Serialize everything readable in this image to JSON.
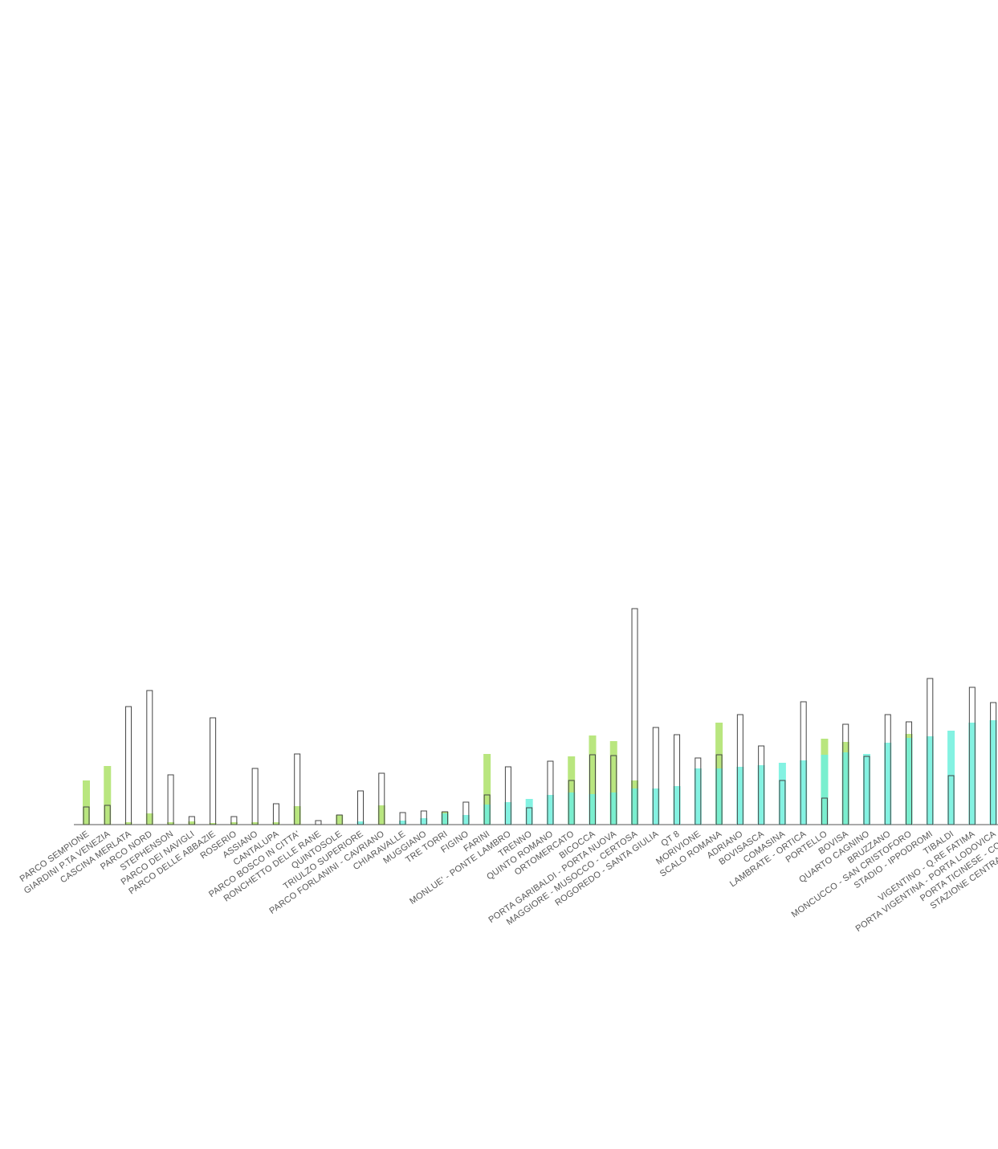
{
  "chart_data": {
    "type": "bar",
    "categories": [
      "PARCO SEMPIONE",
      "GIARDINI P.TA VENEZIA",
      "CASCINA MERLATA",
      "PARCO NORD",
      "STEPHENSON",
      "PARCO DEI NAVIGLI",
      "PARCO DELLE ABBAZIE",
      "ROSERIO",
      "ASSIANO",
      "CANTALUPA",
      "PARCO BOSCO IN CITTA'",
      "RONCHETTO DELLE RANE",
      "QUINTOSOLE",
      "TRIULZO SUPERIORE",
      "PARCO FORLANINI - CAVRIANO",
      "CHIARAVALLE",
      "MUGGIANO",
      "TRE TORRI",
      "FIGINO",
      "FARINI",
      "MONLUE' - PONTE LAMBRO",
      "TRENNO",
      "QUINTO ROMANO",
      "ORTOMERCATO",
      "BICOCCA",
      "PORTA GARIBALDI - PORTA NUOVA",
      "MAGGIORE - MUSOCCO - CERTOSA",
      "ROGOREDO - SANTA GIULIA",
      "QT 8",
      "MORIVIONE",
      "SCALO ROMANA",
      "ADRIANO",
      "BOVISASCA",
      "COMASINA",
      "LAMBRATE - ORTICA",
      "PORTELLO",
      "BOVISA",
      "QUARTO CAGNINO",
      "BRUZZANO",
      "MONCUCCO - SAN CRISTOFORO",
      "STADIO - IPPODROMI",
      "TIBALDI",
      "VIGENTINO - Q.RE FATIMA",
      "PORTA VIGENTINA - PORTA LODOVICA",
      "PORTA TICINESE - CONCH",
      "STAZIONE CENTRALE - PONT"
    ],
    "series": [
      {
        "color": "#a8e05f",
        "values": [
          55,
          73,
          3,
          14,
          3,
          4,
          2,
          3,
          3,
          3,
          23,
          0,
          12,
          0,
          24,
          0,
          0,
          16,
          0,
          88,
          0,
          0,
          0,
          85,
          111,
          104,
          55,
          0,
          0,
          0,
          127,
          0,
          0,
          0,
          0,
          107,
          103,
          0,
          0,
          113,
          0,
          0,
          0,
          0,
          null,
          null
        ]
      },
      {
        "color": "#6ff0dd",
        "values": [
          0,
          0,
          0,
          0,
          0,
          0,
          0,
          0,
          0,
          0,
          0,
          0,
          0,
          4,
          0,
          5,
          8,
          14,
          12,
          25,
          28,
          32,
          37,
          40,
          38,
          40,
          45,
          45,
          48,
          70,
          70,
          72,
          74,
          77,
          80,
          87,
          90,
          88,
          102,
          108,
          110,
          117,
          127,
          130,
          null,
          null
        ]
      },
      {
        "color": "#444444",
        "values": [
          22,
          24,
          147,
          167,
          62,
          10,
          133,
          10,
          70,
          26,
          88,
          5,
          12,
          42,
          64,
          15,
          17,
          16,
          28,
          37,
          72,
          21,
          79,
          55,
          87,
          86,
          269,
          121,
          112,
          83,
          87,
          137,
          98,
          55,
          153,
          33,
          125,
          85,
          137,
          128,
          182,
          61,
          171,
          152,
          null,
          null
        ]
      }
    ]
  }
}
